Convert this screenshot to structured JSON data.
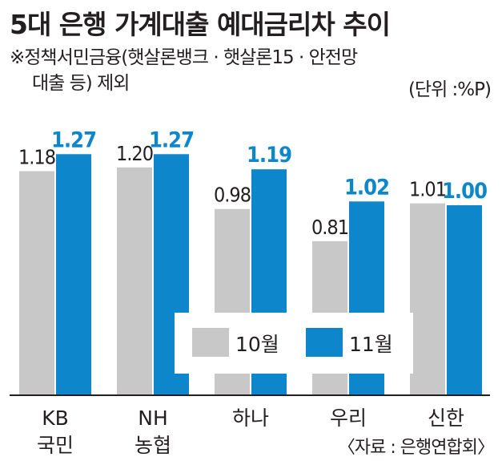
{
  "title": "5대 은행 가계대출 예대금리차 추이",
  "note": {
    "line1": "※정책서민금융(햇살론뱅크 · 햇살론15 · 안전망",
    "line2": "대출 등) 제외"
  },
  "unit": "(단위 :%P)",
  "source": "〈자료 : 은행연합회〉",
  "colors": {
    "oct": "#c8c8c8",
    "nov": "#0e86cc",
    "oct_label": "#231f20",
    "nov_label": "#0e86cc",
    "axis": "#231f20"
  },
  "chart_data": {
    "type": "bar",
    "title": "5대 은행 가계대출 예대금리차 추이",
    "categories": [
      [
        "KB",
        "국민"
      ],
      [
        "NH",
        "농협"
      ],
      [
        "하나"
      ],
      [
        "우리"
      ],
      [
        "신한"
      ]
    ],
    "series": [
      {
        "name": "10월",
        "values": [
          1.18,
          1.2,
          0.98,
          0.81,
          1.01
        ],
        "labels": [
          "1.18",
          "1.20",
          "0.98",
          "0.81",
          "1.01"
        ]
      },
      {
        "name": "11월",
        "values": [
          1.27,
          1.27,
          1.19,
          1.02,
          1.0
        ],
        "labels": [
          "1.27",
          "1.27",
          "1.19",
          "1.02",
          "1.00"
        ]
      }
    ],
    "ylabel": "",
    "ylim": [
      0,
      1.3
    ],
    "grid": false,
    "legend_position": "inside-right"
  }
}
